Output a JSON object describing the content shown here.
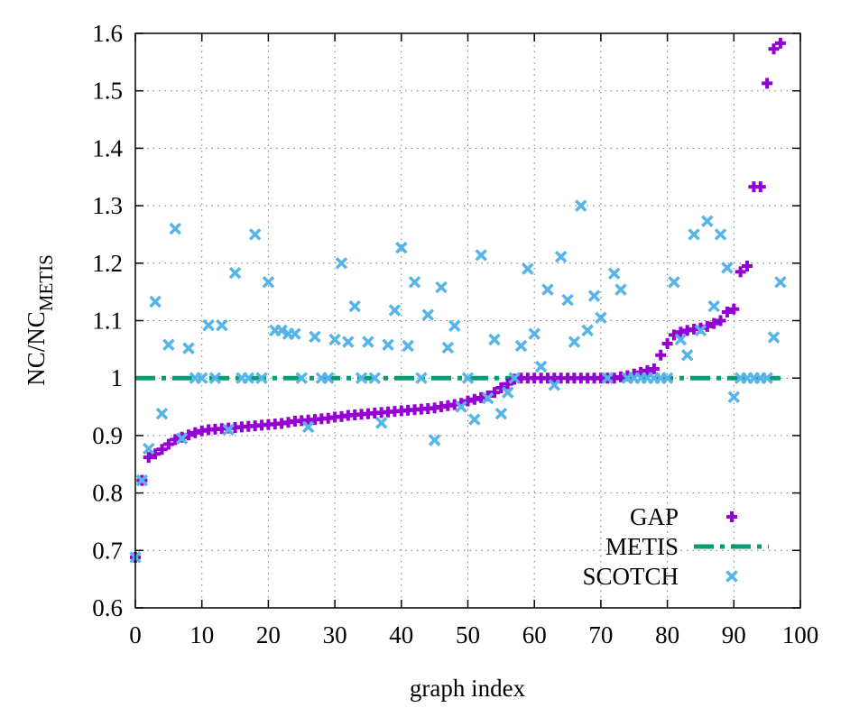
{
  "chart_data": {
    "type": "scatter",
    "title": "",
    "xlabel": "graph index",
    "ylabel_main": "NC/NC",
    "ylabel_sub": "METIS",
    "xlim": [
      0,
      100
    ],
    "ylim": [
      0.6,
      1.6
    ],
    "xticks": [
      "0",
      "10",
      "20",
      "30",
      "40",
      "50",
      "60",
      "70",
      "80",
      "90",
      "100"
    ],
    "yticks": [
      "0.6",
      "0.7",
      "0.8",
      "0.9",
      "1",
      "1.1",
      "1.2",
      "1.3",
      "1.4",
      "1.5",
      "1.6"
    ],
    "grid": true,
    "legend_position": "bottom-right",
    "series": [
      {
        "name": "GAP",
        "marker": "plus",
        "color": "#9400d3",
        "points": [
          [
            0,
            0.688
          ],
          [
            1,
            0.822
          ],
          [
            2,
            0.862
          ],
          [
            3,
            0.868
          ],
          [
            4,
            0.876
          ],
          [
            5,
            0.885
          ],
          [
            6,
            0.893
          ],
          [
            7,
            0.897
          ],
          [
            8,
            0.901
          ],
          [
            9,
            0.905
          ],
          [
            10,
            0.908
          ],
          [
            11,
            0.91
          ],
          [
            12,
            0.911
          ],
          [
            13,
            0.912
          ],
          [
            14,
            0.913
          ],
          [
            15,
            0.914
          ],
          [
            16,
            0.915
          ],
          [
            17,
            0.916
          ],
          [
            18,
            0.917
          ],
          [
            19,
            0.918
          ],
          [
            20,
            0.919
          ],
          [
            21,
            0.92
          ],
          [
            22,
            0.921
          ],
          [
            23,
            0.923
          ],
          [
            24,
            0.925
          ],
          [
            25,
            0.926
          ],
          [
            26,
            0.927
          ],
          [
            27,
            0.928
          ],
          [
            28,
            0.929
          ],
          [
            29,
            0.93
          ],
          [
            30,
            0.932
          ],
          [
            31,
            0.933
          ],
          [
            32,
            0.935
          ],
          [
            33,
            0.936
          ],
          [
            34,
            0.937
          ],
          [
            35,
            0.938
          ],
          [
            36,
            0.939
          ],
          [
            37,
            0.94
          ],
          [
            38,
            0.941
          ],
          [
            39,
            0.942
          ],
          [
            40,
            0.943
          ],
          [
            41,
            0.944
          ],
          [
            42,
            0.945
          ],
          [
            43,
            0.946
          ],
          [
            44,
            0.947
          ],
          [
            45,
            0.948
          ],
          [
            46,
            0.95
          ],
          [
            47,
            0.952
          ],
          [
            48,
            0.954
          ],
          [
            49,
            0.956
          ],
          [
            50,
            0.96
          ],
          [
            51,
            0.963
          ],
          [
            52,
            0.966
          ],
          [
            53,
            0.969
          ],
          [
            54,
            0.975
          ],
          [
            55,
            0.983
          ],
          [
            56,
            0.99
          ],
          [
            57,
            0.998
          ],
          [
            58,
            1.0
          ],
          [
            59,
            1.0
          ],
          [
            60,
            1.0
          ],
          [
            61,
            1.0
          ],
          [
            62,
            1.0
          ],
          [
            63,
            1.0
          ],
          [
            64,
            1.0
          ],
          [
            65,
            1.0
          ],
          [
            66,
            1.0
          ],
          [
            67,
            1.0
          ],
          [
            68,
            1.0
          ],
          [
            69,
            1.0
          ],
          [
            70,
            1.0
          ],
          [
            71,
            1.0
          ],
          [
            72,
            1.0
          ],
          [
            73,
            1.002
          ],
          [
            74,
            1.004
          ],
          [
            75,
            1.007
          ],
          [
            76,
            1.01
          ],
          [
            77,
            1.013
          ],
          [
            78,
            1.016
          ],
          [
            79,
            1.04
          ],
          [
            80,
            1.06
          ],
          [
            81,
            1.075
          ],
          [
            82,
            1.08
          ],
          [
            83,
            1.083
          ],
          [
            84,
            1.085
          ],
          [
            85,
            1.087
          ],
          [
            86,
            1.09
          ],
          [
            87,
            1.095
          ],
          [
            88,
            1.1
          ],
          [
            89,
            1.115
          ],
          [
            90,
            1.12
          ],
          [
            91,
            1.185
          ],
          [
            92,
            1.195
          ],
          [
            93,
            1.333
          ],
          [
            94,
            1.333
          ],
          [
            95,
            1.513
          ],
          [
            96,
            1.573
          ],
          [
            97,
            1.583
          ]
        ]
      },
      {
        "name": "METIS",
        "marker": "dash-dot-line",
        "color": "#009e73",
        "points": [
          [
            0,
            1.0
          ],
          [
            97,
            1.0
          ]
        ]
      },
      {
        "name": "SCOTCH",
        "marker": "cross",
        "color": "#56b4e9",
        "points": [
          [
            0,
            0.688
          ],
          [
            1,
            0.822
          ],
          [
            2,
            0.877
          ],
          [
            3,
            1.133
          ],
          [
            4,
            0.938
          ],
          [
            5,
            1.058
          ],
          [
            6,
            1.26
          ],
          [
            7,
            0.895
          ],
          [
            8,
            1.052
          ],
          [
            9,
            1.0
          ],
          [
            10,
            1.0
          ],
          [
            11,
            1.092
          ],
          [
            12,
            1.0
          ],
          [
            13,
            1.092
          ],
          [
            14,
            0.91
          ],
          [
            15,
            1.183
          ],
          [
            16,
            1.0
          ],
          [
            17,
            1.0
          ],
          [
            18,
            1.25
          ],
          [
            19,
            1.0
          ],
          [
            20,
            1.167
          ],
          [
            21,
            1.083
          ],
          [
            22,
            1.083
          ],
          [
            23,
            1.077
          ],
          [
            24,
            1.077
          ],
          [
            25,
            1.0
          ],
          [
            26,
            0.915
          ],
          [
            27,
            1.072
          ],
          [
            28,
            1.0
          ],
          [
            29,
            1.0
          ],
          [
            30,
            1.067
          ],
          [
            31,
            1.2
          ],
          [
            32,
            1.063
          ],
          [
            33,
            1.125
          ],
          [
            34,
            1.0
          ],
          [
            35,
            1.063
          ],
          [
            36,
            1.0
          ],
          [
            37,
            0.922
          ],
          [
            38,
            1.058
          ],
          [
            39,
            1.118
          ],
          [
            40,
            1.227
          ],
          [
            41,
            1.056
          ],
          [
            42,
            1.167
          ],
          [
            43,
            1.0
          ],
          [
            44,
            1.11
          ],
          [
            45,
            0.892
          ],
          [
            46,
            1.158
          ],
          [
            47,
            1.053
          ],
          [
            48,
            1.091
          ],
          [
            49,
            0.95
          ],
          [
            50,
            1.0
          ],
          [
            51,
            0.928
          ],
          [
            52,
            1.214
          ],
          [
            53,
            0.965
          ],
          [
            54,
            1.067
          ],
          [
            55,
            0.938
          ],
          [
            56,
            0.975
          ],
          [
            57,
            1.0
          ],
          [
            58,
            1.056
          ],
          [
            59,
            1.19
          ],
          [
            60,
            1.077
          ],
          [
            61,
            1.02
          ],
          [
            62,
            1.154
          ],
          [
            63,
            0.988
          ],
          [
            64,
            1.211
          ],
          [
            65,
            1.136
          ],
          [
            66,
            1.063
          ],
          [
            67,
            1.3
          ],
          [
            68,
            1.083
          ],
          [
            69,
            1.143
          ],
          [
            70,
            1.105
          ],
          [
            71,
            1.0
          ],
          [
            72,
            1.182
          ],
          [
            73,
            1.154
          ],
          [
            74,
            1.0
          ],
          [
            75,
            1.0
          ],
          [
            76,
            1.0
          ],
          [
            77,
            1.0
          ],
          [
            78,
            1.0
          ],
          [
            79,
            1.0
          ],
          [
            80,
            1.0
          ],
          [
            81,
            1.167
          ],
          [
            82,
            1.067
          ],
          [
            83,
            1.04
          ],
          [
            84,
            1.25
          ],
          [
            85,
            1.083
          ],
          [
            86,
            1.273
          ],
          [
            87,
            1.125
          ],
          [
            88,
            1.25
          ],
          [
            89,
            1.192
          ],
          [
            90,
            0.967
          ],
          [
            91,
            1.0
          ],
          [
            92,
            1.0
          ],
          [
            93,
            1.0
          ],
          [
            94,
            1.0
          ],
          [
            95,
            1.0
          ],
          [
            96,
            1.071
          ],
          [
            97,
            1.167
          ]
        ]
      }
    ]
  }
}
